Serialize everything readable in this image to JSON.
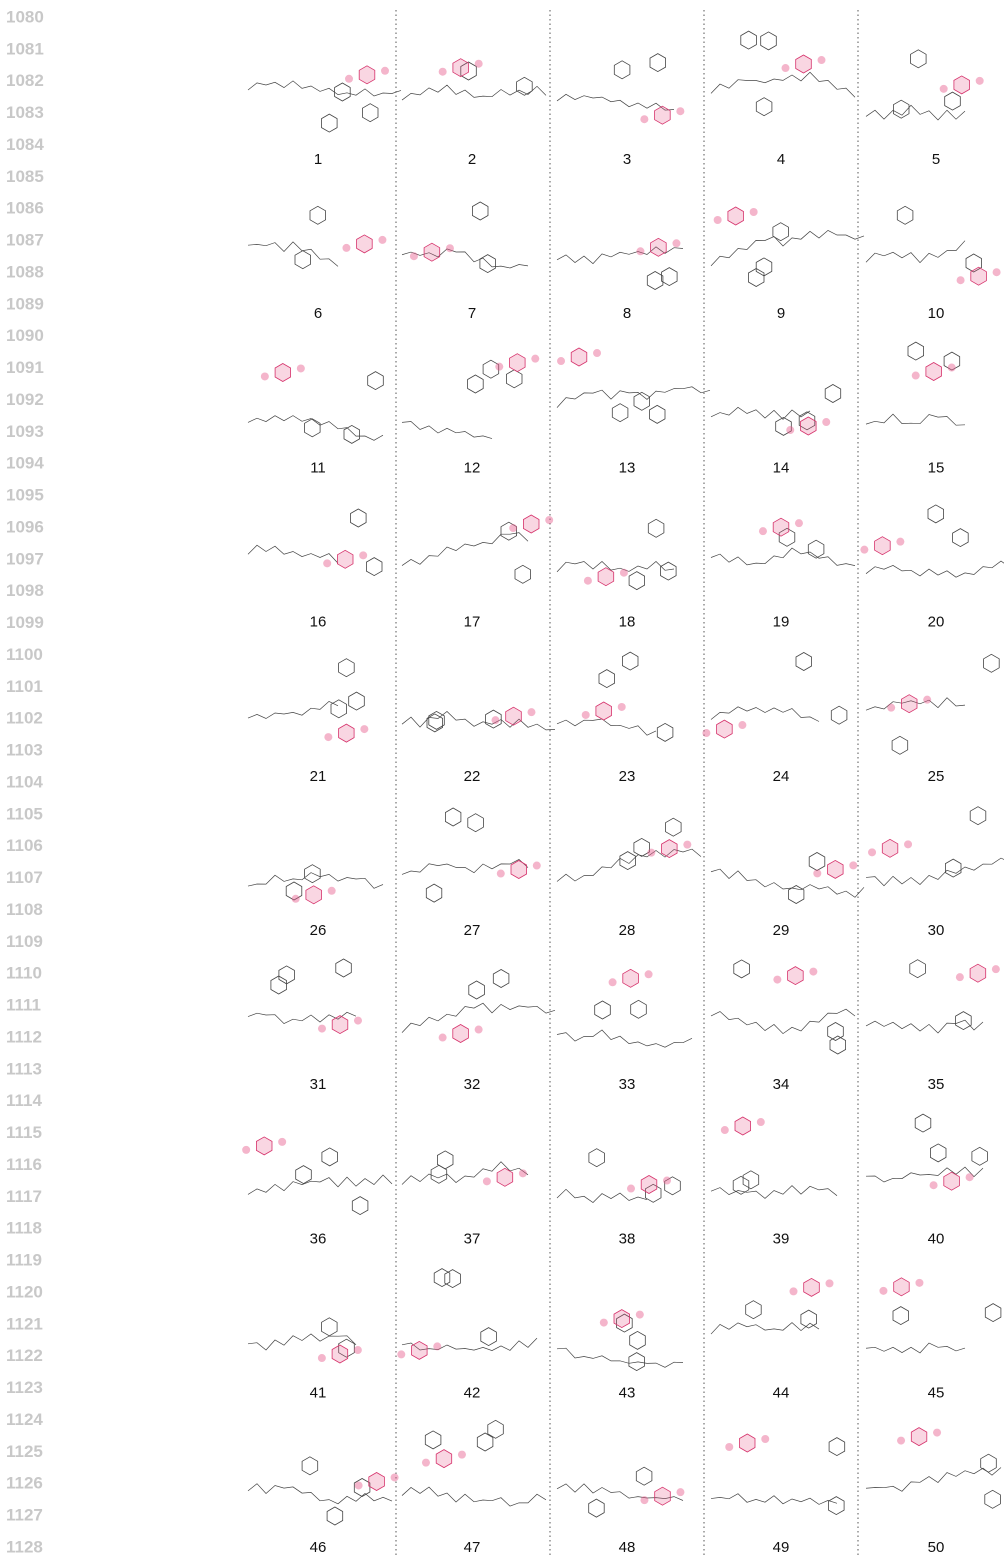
{
  "line_numbers": [
    1080,
    1081,
    1082,
    1083,
    1084,
    1085,
    1086,
    1087,
    1088,
    1089,
    1090,
    1091,
    1092,
    1093,
    1094,
    1095,
    1096,
    1097,
    1098,
    1099,
    1100,
    1101,
    1102,
    1103,
    1104,
    1105,
    1106,
    1107,
    1108,
    1109,
    1110,
    1111,
    1112,
    1113,
    1114,
    1115,
    1116,
    1117,
    1118,
    1119,
    1120,
    1121,
    1122,
    1123,
    1124,
    1125,
    1126,
    1127,
    1128
  ],
  "molecule_labels": [
    1,
    2,
    3,
    4,
    5,
    6,
    7,
    8,
    9,
    10,
    11,
    12,
    13,
    14,
    15,
    16,
    17,
    18,
    19,
    20,
    21,
    22,
    23,
    24,
    25,
    26,
    27,
    28,
    29,
    30,
    31,
    32,
    33,
    34,
    35,
    36,
    37,
    38,
    39,
    40,
    41,
    42,
    43,
    44,
    45,
    46,
    47,
    48,
    49,
    50
  ]
}
